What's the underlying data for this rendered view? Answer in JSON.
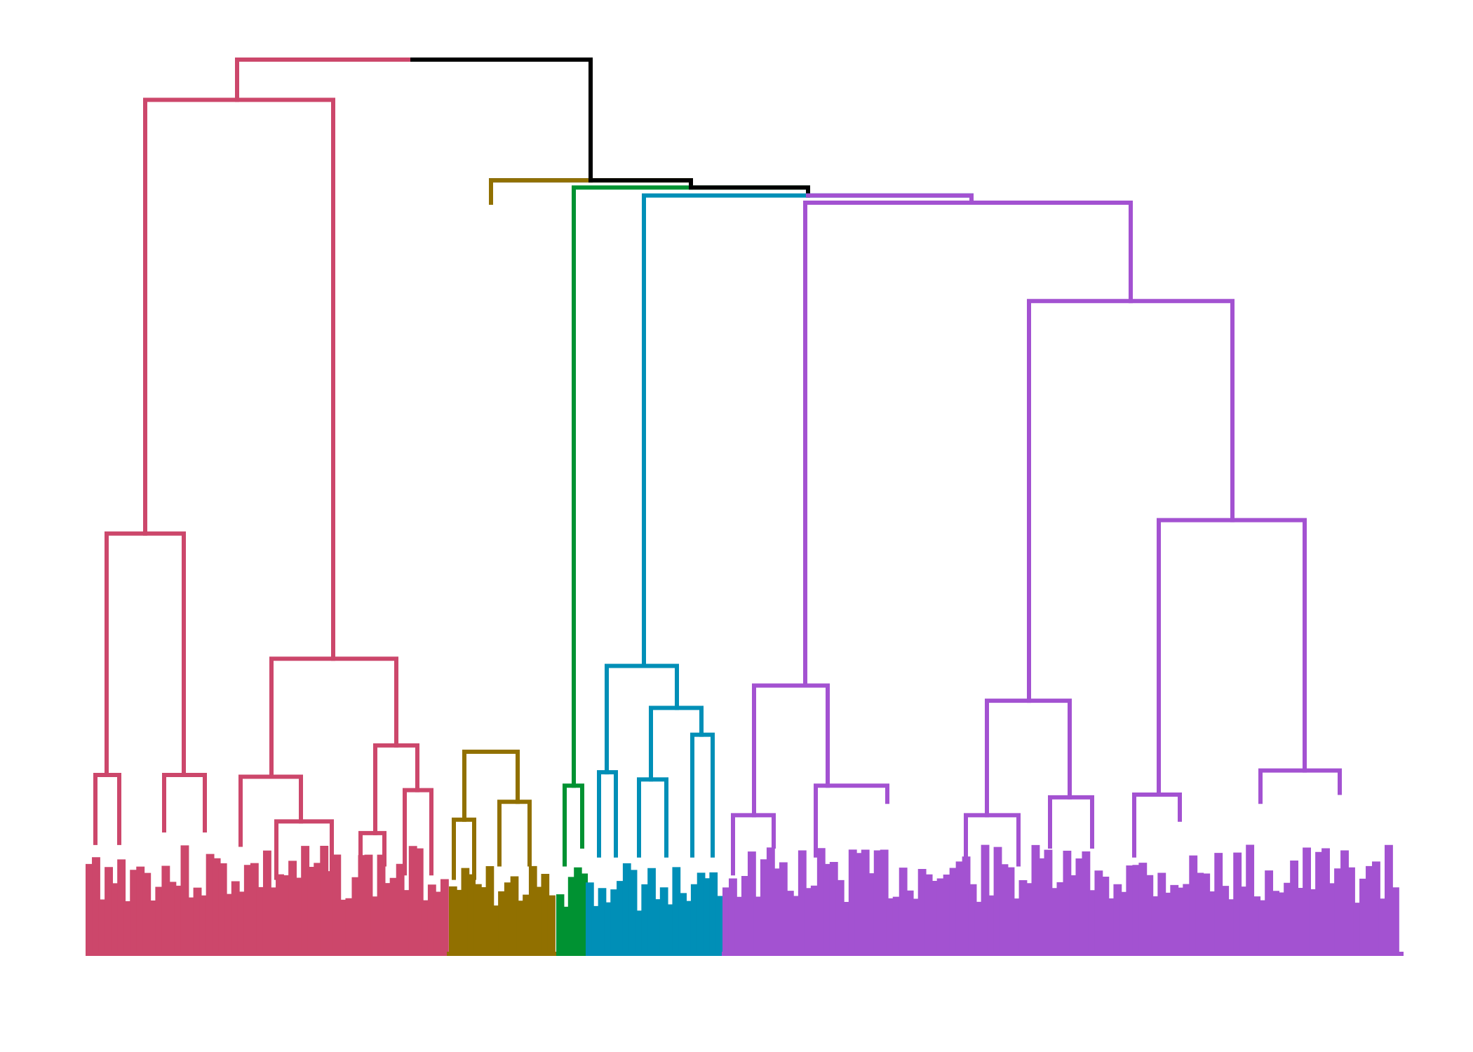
{
  "diagram": {
    "type": "dendrogram",
    "title": "",
    "orientation": "top-down",
    "leaf_labels_shown": false,
    "axes_shown": false,
    "colors": {
      "root": "#000000",
      "cluster_1": "#cc476b",
      "cluster_2": "#917000",
      "cluster_3": "#009232",
      "cluster_4": "#008fb7",
      "cluster_5": "#a352d1"
    },
    "clusters": [
      {
        "id": "cluster_1",
        "color": "#cc476b",
        "order": 1,
        "height": 0.955
      },
      {
        "id": "cluster_2",
        "color": "#917000",
        "order": 2,
        "height": 0.226
      },
      {
        "id": "cluster_3",
        "color": "#009232",
        "order": 3,
        "height": 0.188
      },
      {
        "id": "cluster_4",
        "color": "#008fb7",
        "order": 4,
        "height": 0.322
      },
      {
        "id": "cluster_5",
        "color": "#a352d1",
        "order": 5,
        "height": 0.84
      }
    ],
    "root_merges": [
      {
        "height": 1.0,
        "joins": [
          "cluster_1",
          "rest"
        ]
      },
      {
        "height": 0.865,
        "joins": [
          "cluster_2",
          "rest"
        ]
      },
      {
        "height": 0.857,
        "joins": [
          "cluster_3",
          "rest"
        ]
      },
      {
        "height": 0.848,
        "joins": [
          "cluster_4",
          "cluster_5"
        ]
      }
    ]
  }
}
